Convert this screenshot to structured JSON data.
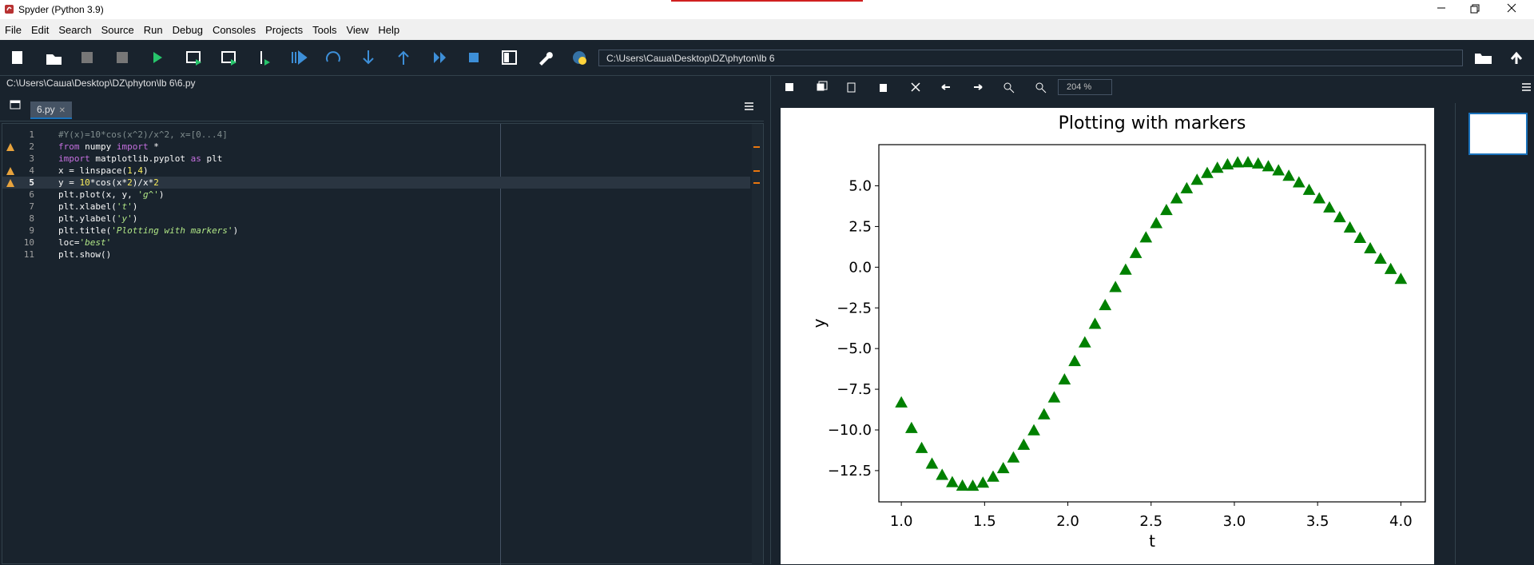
{
  "window": {
    "title": "Spyder (Python 3.9)"
  },
  "menu": [
    "File",
    "Edit",
    "Search",
    "Source",
    "Run",
    "Debug",
    "Consoles",
    "Projects",
    "Tools",
    "View",
    "Help"
  ],
  "toolbar": {
    "working_directory": "C:\\Users\\Саша\\Desktop\\DZ\\phyton\\lb 6"
  },
  "editor": {
    "file_path": "C:\\Users\\Саша\\Desktop\\DZ\\phyton\\lb 6\\6.py",
    "tab": "6.py",
    "lines": [
      {
        "number": 1,
        "tokens": [
          {
            "text": "#Y(x)=10*cos(x^2)/x^2, x=[0...4]",
            "color": "#7f8c8d"
          }
        ]
      },
      {
        "number": 2,
        "warning": true,
        "tokens": [
          {
            "text": "from",
            "color": "#c670e0"
          },
          {
            "text": " numpy ",
            "color": "#fafafa"
          },
          {
            "text": "import",
            "color": "#c670e0"
          },
          {
            "text": " *",
            "color": "#fafafa"
          }
        ]
      },
      {
        "number": 3,
        "tokens": [
          {
            "text": "import",
            "color": "#c670e0"
          },
          {
            "text": " matplotlib.pyplot ",
            "color": "#fafafa"
          },
          {
            "text": "as",
            "color": "#c670e0"
          },
          {
            "text": " plt",
            "color": "#fafafa"
          }
        ]
      },
      {
        "number": 4,
        "warning": true,
        "tokens": [
          {
            "text": "x = linspace(",
            "color": "#fafafa"
          },
          {
            "text": "1",
            "color": "#faed5c"
          },
          {
            "text": ",",
            "color": "#fafafa"
          },
          {
            "text": "4",
            "color": "#faed5c"
          },
          {
            "text": ")",
            "color": "#fafafa"
          }
        ]
      },
      {
        "number": 5,
        "warning": true,
        "current": true,
        "tokens": [
          {
            "text": "y = ",
            "color": "#fafafa"
          },
          {
            "text": "10",
            "color": "#faed5c"
          },
          {
            "text": "*cos(x*",
            "color": "#fafafa"
          },
          {
            "text": "2",
            "color": "#faed5c"
          },
          {
            "text": ")/x*",
            "color": "#fafafa"
          },
          {
            "text": "2",
            "color": "#faed5c"
          }
        ]
      },
      {
        "number": 6,
        "tokens": [
          {
            "text": "plt.plot(x, y, ",
            "color": "#fafafa"
          },
          {
            "text": "'g^'",
            "color": "#b0e686"
          },
          {
            "text": ")",
            "color": "#fafafa"
          }
        ]
      },
      {
        "number": 7,
        "tokens": [
          {
            "text": "plt.xlabel(",
            "color": "#fafafa"
          },
          {
            "text": "'t'",
            "color": "#b0e686"
          },
          {
            "text": ")",
            "color": "#fafafa"
          }
        ]
      },
      {
        "number": 8,
        "tokens": [
          {
            "text": "plt.ylabel(",
            "color": "#fafafa"
          },
          {
            "text": "'y'",
            "color": "#b0e686"
          },
          {
            "text": ")",
            "color": "#fafafa"
          }
        ]
      },
      {
        "number": 9,
        "tokens": [
          {
            "text": "plt.title(",
            "color": "#fafafa"
          },
          {
            "text": "'Plotting with markers'",
            "color": "#b0e686"
          },
          {
            "text": ")",
            "color": "#fafafa"
          }
        ]
      },
      {
        "number": 10,
        "tokens": [
          {
            "text": "loc=",
            "color": "#fafafa"
          },
          {
            "text": "'best'",
            "color": "#b0e686"
          }
        ]
      },
      {
        "number": 11,
        "tokens": [
          {
            "text": "plt.show()",
            "color": "#fafafa"
          }
        ]
      }
    ]
  },
  "plots": {
    "zoom": "204 %"
  },
  "chart_data": {
    "type": "scatter",
    "title": "Plotting with markers",
    "x_label": "t",
    "y_label": "y",
    "marker": "triangle",
    "color": "#008000",
    "x": [
      1.0,
      1.061,
      1.122,
      1.184,
      1.245,
      1.306,
      1.367,
      1.429,
      1.49,
      1.551,
      1.612,
      1.673,
      1.735,
      1.796,
      1.857,
      1.918,
      1.98,
      2.041,
      2.102,
      2.163,
      2.224,
      2.286,
      2.347,
      2.408,
      2.469,
      2.531,
      2.592,
      2.653,
      2.714,
      2.776,
      2.837,
      2.898,
      2.959,
      3.02,
      3.082,
      3.143,
      3.204,
      3.265,
      3.327,
      3.388,
      3.449,
      3.51,
      3.571,
      3.633,
      3.694,
      3.755,
      3.816,
      3.878,
      3.939,
      4.0
    ],
    "values": [
      -8.32,
      -9.89,
      -11.12,
      -12.08,
      -12.77,
      -13.22,
      -13.43,
      -13.44,
      -13.25,
      -12.88,
      -12.36,
      -11.7,
      -10.92,
      -10.03,
      -9.05,
      -8.01,
      -6.91,
      -5.78,
      -4.63,
      -3.49,
      -2.34,
      -1.23,
      -0.16,
      0.86,
      1.82,
      2.7,
      3.5,
      4.22,
      4.84,
      5.36,
      5.78,
      6.1,
      6.31,
      6.43,
      6.44,
      6.36,
      6.19,
      5.94,
      5.61,
      5.2,
      4.74,
      4.22,
      3.66,
      3.06,
      2.43,
      1.79,
      1.15,
      0.51,
      -0.12,
      -0.73
    ],
    "xlim": [
      0.865,
      4.147
    ],
    "ylim": [
      -14.42,
      7.53
    ],
    "xticks": [
      {
        "value": 1,
        "label": "1.0"
      },
      {
        "value": 1.5,
        "label": "1.5"
      },
      {
        "value": 2,
        "label": "2.0"
      },
      {
        "value": 2.5,
        "label": "2.5"
      },
      {
        "value": 3,
        "label": "3.0"
      },
      {
        "value": 3.5,
        "label": "3.5"
      },
      {
        "value": 4,
        "label": "4.0"
      }
    ],
    "yticks": [
      {
        "value": 5,
        "label": "5.0"
      },
      {
        "value": 2.5,
        "label": "2.5"
      },
      {
        "value": 0,
        "label": "0.0"
      },
      {
        "value": -2.5,
        "label": "−2.5"
      },
      {
        "value": -5,
        "label": "−5.0"
      },
      {
        "value": -7.5,
        "label": "−7.5"
      },
      {
        "value": -10,
        "label": "−10.0"
      },
      {
        "value": -12.5,
        "label": "−12.5"
      }
    ],
    "grid": false
  }
}
